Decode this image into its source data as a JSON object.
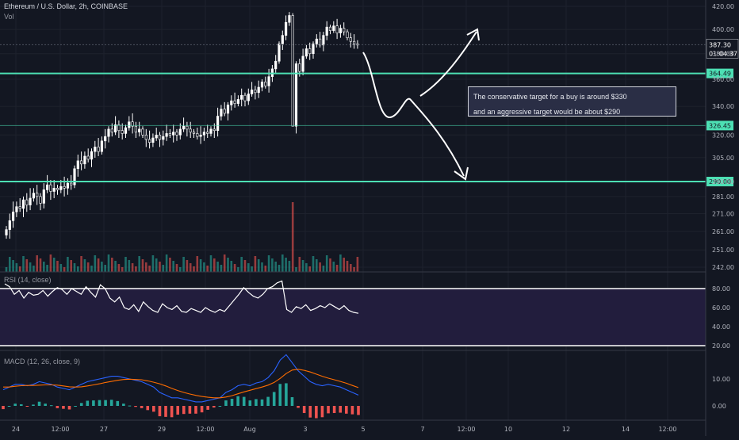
{
  "header": {
    "symbol_title": "Ethereum / U.S. Dollar, 2h, COINBASE",
    "volume_label": "Vol"
  },
  "indicators": {
    "rsi_title": "RSI (14, close)",
    "macd_title": "MACD (12, 26, close, 9)"
  },
  "annotation": {
    "line1": "The conservative target for a buy is around $330",
    "line2": "and an aggressive target would be about $290"
  },
  "price_badges": {
    "last_price": "387.30",
    "countdown": "01:04:37",
    "level_high": "364.49",
    "level_mid": "326.45",
    "level_low": "290.00"
  },
  "colors": {
    "background": "#131722",
    "grid": "#1e222d",
    "candle": "#ffffff",
    "level_line": "#4de0b4",
    "volume_up": "#26a69a",
    "volume_down": "#ef5350",
    "rsi_line": "#ffffff",
    "rsi_band": "#221d3d",
    "macd_line": "#2962ff",
    "signal_line": "#ff6d00",
    "hist_up": "#26a69a",
    "hist_down": "#ef5350",
    "annotation_box": "#2a2e45"
  },
  "chart_data": {
    "type": "candlestick",
    "price_axis": {
      "scale": "log",
      "ticks": [
        420,
        400,
        380,
        360,
        340,
        320,
        305,
        290,
        281,
        271,
        261,
        251,
        242
      ],
      "ylim": [
        239,
        422
      ]
    },
    "time_axis": {
      "ticks": [
        "24",
        "12:00",
        "27",
        "29",
        "12:00",
        "Aug",
        "3",
        "5",
        "7",
        "12:00",
        "10",
        "12",
        "14",
        "12:00"
      ]
    },
    "price_close": [
      262,
      267,
      272,
      275,
      274,
      279,
      276,
      280,
      283,
      281,
      277,
      285,
      288,
      284,
      286,
      285,
      287,
      286,
      289,
      288,
      298,
      303,
      301,
      306,
      304,
      309,
      312,
      309,
      316,
      319,
      324,
      322,
      327,
      323,
      321,
      325,
      329,
      326,
      322,
      324,
      320,
      317,
      315,
      318,
      320,
      317,
      319,
      321,
      320,
      322,
      320,
      324,
      326,
      324,
      322,
      321,
      319,
      320,
      322,
      321,
      324,
      323,
      333,
      338,
      335,
      341,
      344,
      342,
      345,
      348,
      344,
      349,
      352,
      350,
      354,
      358,
      355,
      362,
      368,
      374,
      388,
      395,
      406,
      412,
      326,
      372,
      366,
      378,
      384,
      380,
      388,
      392,
      387,
      395,
      402,
      399,
      403,
      397,
      401,
      398,
      393,
      390,
      388,
      387
    ],
    "support_resistance": [
      364.49,
      326.45,
      290.0
    ],
    "volume_spike_index": 84,
    "rsi": {
      "ticks": [
        80,
        60,
        40,
        20
      ],
      "ylim": [
        15,
        88
      ],
      "band": [
        30,
        80
      ],
      "values": [
        85,
        82,
        74,
        78,
        70,
        76,
        73,
        74,
        78,
        72,
        77,
        81,
        79,
        74,
        80,
        77,
        74,
        82,
        76,
        71,
        84,
        80,
        70,
        66,
        71,
        60,
        58,
        63,
        56,
        66,
        61,
        57,
        55,
        64,
        60,
        58,
        62,
        56,
        55,
        59,
        57,
        55,
        60,
        57,
        55,
        58,
        56,
        62,
        68,
        74,
        81,
        76,
        72,
        70,
        74,
        80,
        82,
        86,
        88,
        58,
        55,
        61,
        59,
        63,
        57,
        59,
        62,
        60,
        64,
        61,
        58,
        62,
        57,
        55,
        54
      ]
    },
    "macd": {
      "ticks": [
        10.0,
        0.0
      ],
      "ylim": [
        -4,
        22
      ],
      "macd": [
        6,
        7,
        8,
        8,
        7.5,
        8,
        9,
        8.5,
        8,
        7,
        6.5,
        6,
        7,
        8,
        9,
        9.5,
        10,
        10.5,
        11,
        11,
        10.5,
        10,
        9.5,
        9,
        8,
        7,
        5,
        4,
        3,
        3,
        2.5,
        2,
        1.5,
        1.5,
        2,
        2.5,
        3,
        5,
        6,
        7.5,
        8,
        7.5,
        8.5,
        9,
        10.5,
        13,
        17,
        19,
        16,
        13,
        11,
        9,
        8,
        7.5,
        8,
        7.5,
        7,
        6,
        5,
        4
      ],
      "signal": [
        7,
        7,
        7.3,
        7.5,
        7.6,
        7.6,
        7.7,
        7.8,
        7.8,
        7.7,
        7.4,
        7.1,
        7,
        7.1,
        7.4,
        7.8,
        8.2,
        8.7,
        9.1,
        9.5,
        9.8,
        9.9,
        9.8,
        9.7,
        9.3,
        8.8,
        8.2,
        7.4,
        6.5,
        5.7,
        5,
        4.4,
        3.9,
        3.5,
        3.2,
        3,
        3,
        3.3,
        3.8,
        4.5,
        5.2,
        5.8,
        6.4,
        7,
        7.7,
        8.7,
        10.2,
        12,
        13.3,
        13.6,
        13.2,
        12.6,
        11.8,
        11,
        10.3,
        9.7,
        9.1,
        8.4,
        7.6,
        6.8
      ]
    }
  }
}
